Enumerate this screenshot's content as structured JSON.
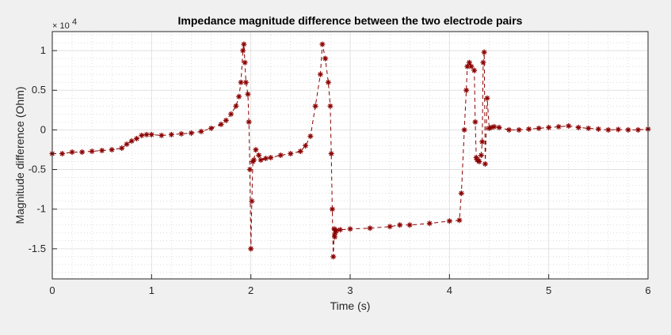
{
  "figure": {
    "background": "#f0f0f0"
  },
  "chart_data": {
    "type": "line",
    "title": "Impedance magnitude difference between the two electrode pairs",
    "xlabel": "Time (s)",
    "ylabel": "Magnitude difference (Ohm)",
    "y_exponent_base": "× 10",
    "y_exponent_power": "4",
    "xlim": [
      0,
      6
    ],
    "ylim": [
      -1.88,
      1.24
    ],
    "xticks": [
      0,
      1,
      2,
      3,
      4,
      5,
      6
    ],
    "xtick_labels": [
      "0",
      "1",
      "2",
      "3",
      "4",
      "5",
      "6"
    ],
    "yticks": [
      -1.5,
      -1,
      -0.5,
      0,
      0.5,
      1
    ],
    "ytick_labels": [
      "-1.5",
      "-1",
      "-0.5",
      "0",
      "0.5",
      "1"
    ],
    "grid": true,
    "minor_grid": true,
    "line_style": "dashed",
    "marker": "asterisk",
    "color": "#8b0000",
    "series": [
      {
        "x": [
          0.0,
          0.1,
          0.2,
          0.3,
          0.4,
          0.5,
          0.6,
          0.7,
          0.75,
          0.8,
          0.85,
          0.9,
          0.95,
          1.0,
          1.1,
          1.2,
          1.3,
          1.4,
          1.5,
          1.6,
          1.7,
          1.75,
          1.8,
          1.85,
          1.88,
          1.9,
          1.92,
          1.93,
          1.94,
          1.95,
          1.97,
          1.98,
          1.99,
          2.0,
          2.01,
          2.02,
          2.03,
          2.05,
          2.08,
          2.1,
          2.15,
          2.2,
          2.3,
          2.4,
          2.5,
          2.55,
          2.6,
          2.65,
          2.7,
          2.72,
          2.75,
          2.78,
          2.8,
          2.81,
          2.82,
          2.83,
          2.84,
          2.845,
          2.85,
          2.86,
          2.9,
          3.0,
          3.2,
          3.4,
          3.5,
          3.6,
          3.8,
          4.0,
          4.1,
          4.12,
          4.15,
          4.17,
          4.18,
          4.2,
          4.22,
          4.25,
          4.26,
          4.27,
          4.28,
          4.3,
          4.32,
          4.33,
          4.34,
          4.35,
          4.36,
          4.38,
          4.4,
          4.42,
          4.45,
          4.5,
          4.6,
          4.7,
          4.8,
          4.9,
          5.0,
          5.1,
          5.2,
          5.3,
          5.4,
          5.5,
          5.6,
          5.7,
          5.8,
          5.9,
          6.0
        ],
        "y": [
          -3000,
          -3000,
          -2800,
          -2800,
          -2700,
          -2600,
          -2500,
          -2300,
          -1800,
          -1400,
          -1100,
          -700,
          -600,
          -600,
          -700,
          -600,
          -500,
          -400,
          -200,
          200,
          700,
          1200,
          2000,
          3000,
          4200,
          6000,
          10000,
          10800,
          8500,
          6000,
          4500,
          1000,
          -5000,
          -15000,
          -9000,
          -4000,
          -3800,
          -2500,
          -3200,
          -3800,
          -3600,
          -3500,
          -3200,
          -3000,
          -2700,
          -2000,
          -800,
          3000,
          7000,
          10800,
          9000,
          6000,
          3000,
          -3000,
          -10000,
          -16000,
          -12500,
          -13500,
          -13000,
          -12700,
          -12600,
          -12500,
          -12400,
          -12200,
          -12000,
          -12000,
          -11800,
          -11500,
          -11400,
          -8000,
          0,
          5000,
          8000,
          8500,
          8000,
          7500,
          1000,
          -3500,
          -3800,
          -4000,
          -3200,
          -1500,
          8500,
          9800,
          -4300,
          4000,
          200,
          300,
          400,
          300,
          0,
          0,
          100,
          200,
          300,
          400,
          500,
          300,
          200,
          100,
          0,
          50,
          0,
          0,
          100
        ]
      }
    ]
  }
}
